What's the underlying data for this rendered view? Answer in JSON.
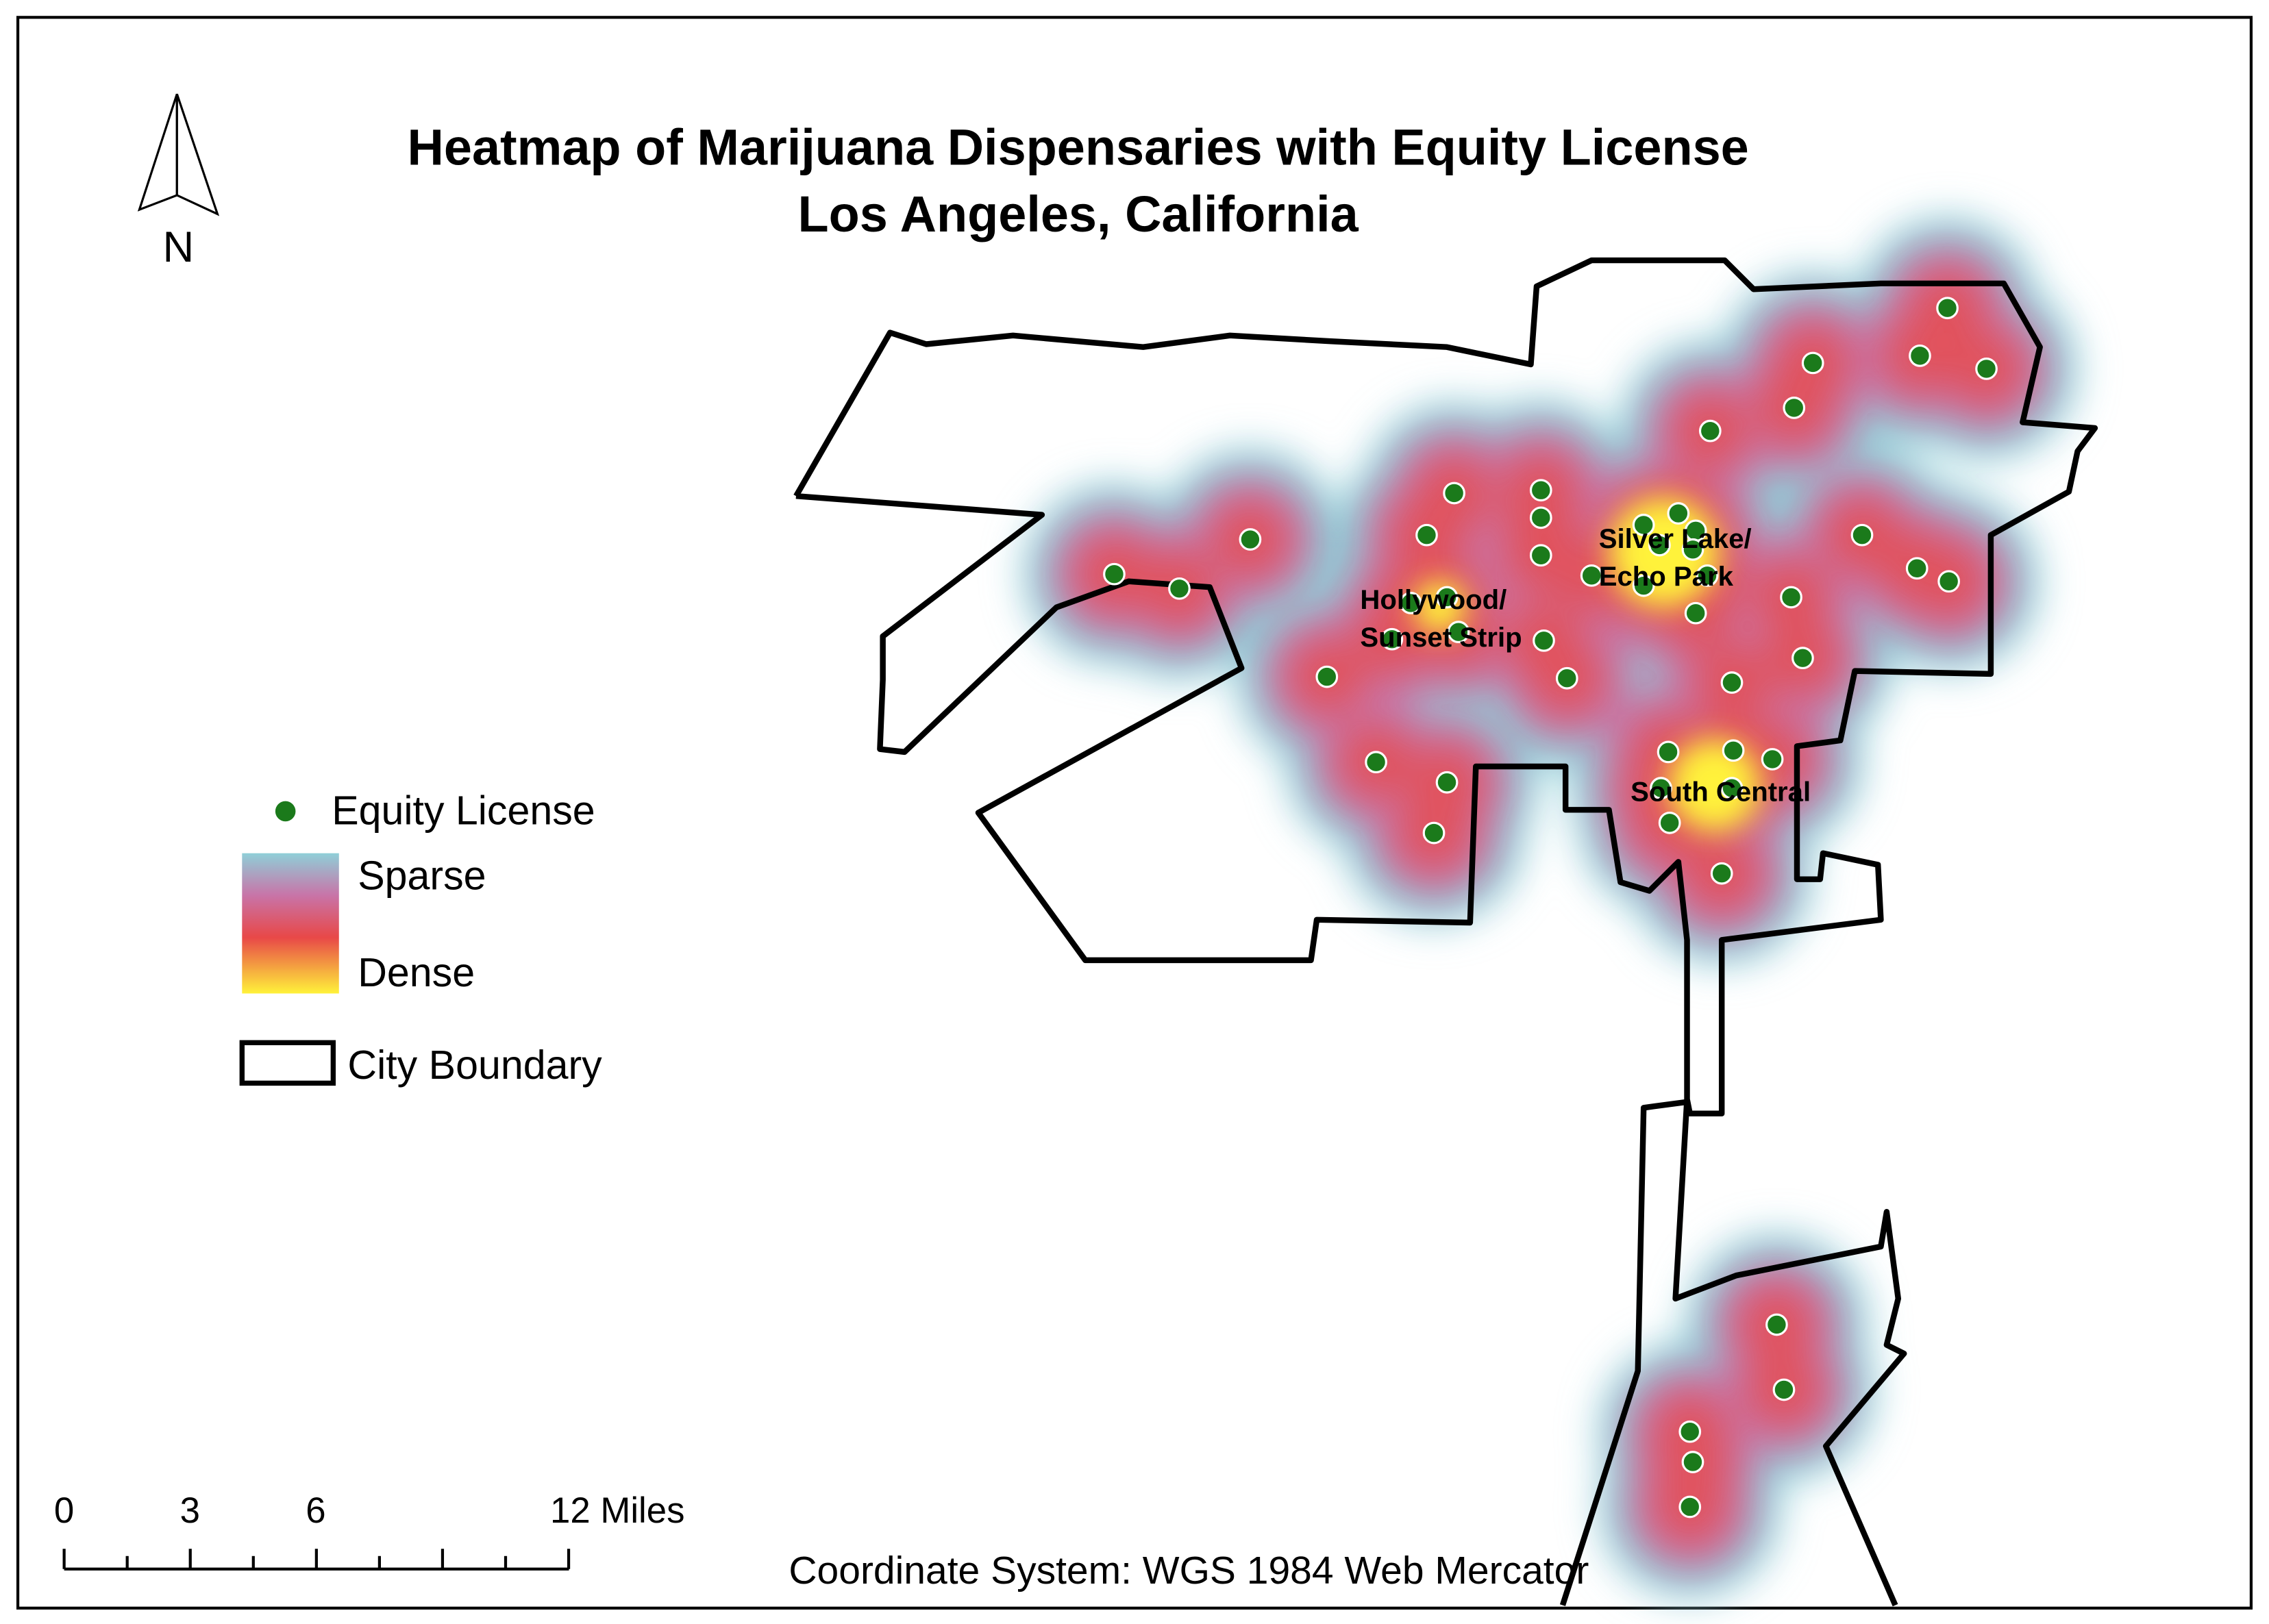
{
  "title": {
    "line1": "Heatmap of Marijuana Dispensaries with Equity License",
    "line2": "Los Angeles, California"
  },
  "north_arrow": "N",
  "legend": {
    "points": "Equity License",
    "sparse": "Sparse",
    "dense": "Dense",
    "boundary": "City Boundary"
  },
  "scale_bar": {
    "labels": [
      "0",
      "3",
      "6",
      "12 Miles"
    ]
  },
  "coordinate_system": "Coordinate System: WGS 1984 Web Mercator",
  "area_labels": [
    {
      "line1": "Hollywood/",
      "line2": "Sunset Strip"
    },
    {
      "line1": "Silver Lake/",
      "line2": "Echo Park"
    },
    {
      "line1": "South Central"
    }
  ]
}
